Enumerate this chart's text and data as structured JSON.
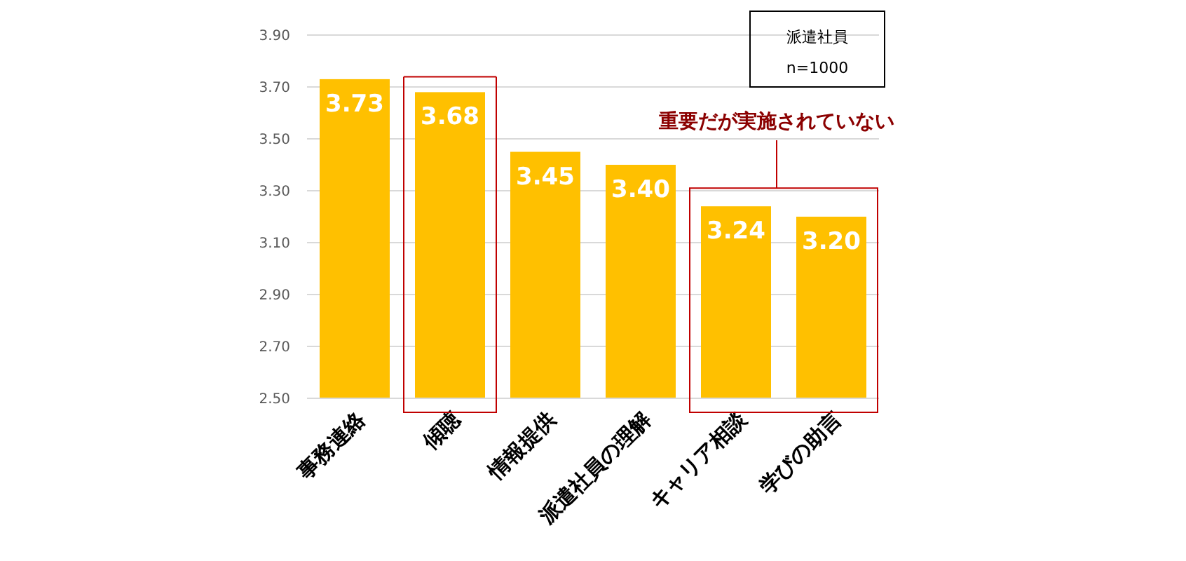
{
  "chart_data": {
    "type": "bar",
    "categories": [
      "事務連絡",
      "傾聴",
      "情報提供",
      "派遣社員の理解",
      "キャリア相談",
      "学びの助言"
    ],
    "values": [
      3.73,
      3.68,
      3.45,
      3.4,
      3.24,
      3.2
    ],
    "value_labels": [
      "3.73",
      "3.68",
      "3.45",
      "3.40",
      "3.24",
      "3.20"
    ],
    "color": "#ffc000",
    "ylim": [
      2.5,
      3.9
    ],
    "yticks": [
      {
        "value": 2.5,
        "label": "2.50"
      },
      {
        "value": 2.7,
        "label": "2.70"
      },
      {
        "value": 2.9,
        "label": "2.90"
      },
      {
        "value": 3.1,
        "label": "3.10"
      },
      {
        "value": 3.3,
        "label": "3.30"
      },
      {
        "value": 3.5,
        "label": "3.50"
      },
      {
        "value": 3.7,
        "label": "3.70"
      },
      {
        "value": 3.9,
        "label": "3.90"
      }
    ],
    "grid": "y",
    "annotations": [
      "派遣社員",
      "n=1000",
      "重要だが実施されていない"
    ]
  }
}
